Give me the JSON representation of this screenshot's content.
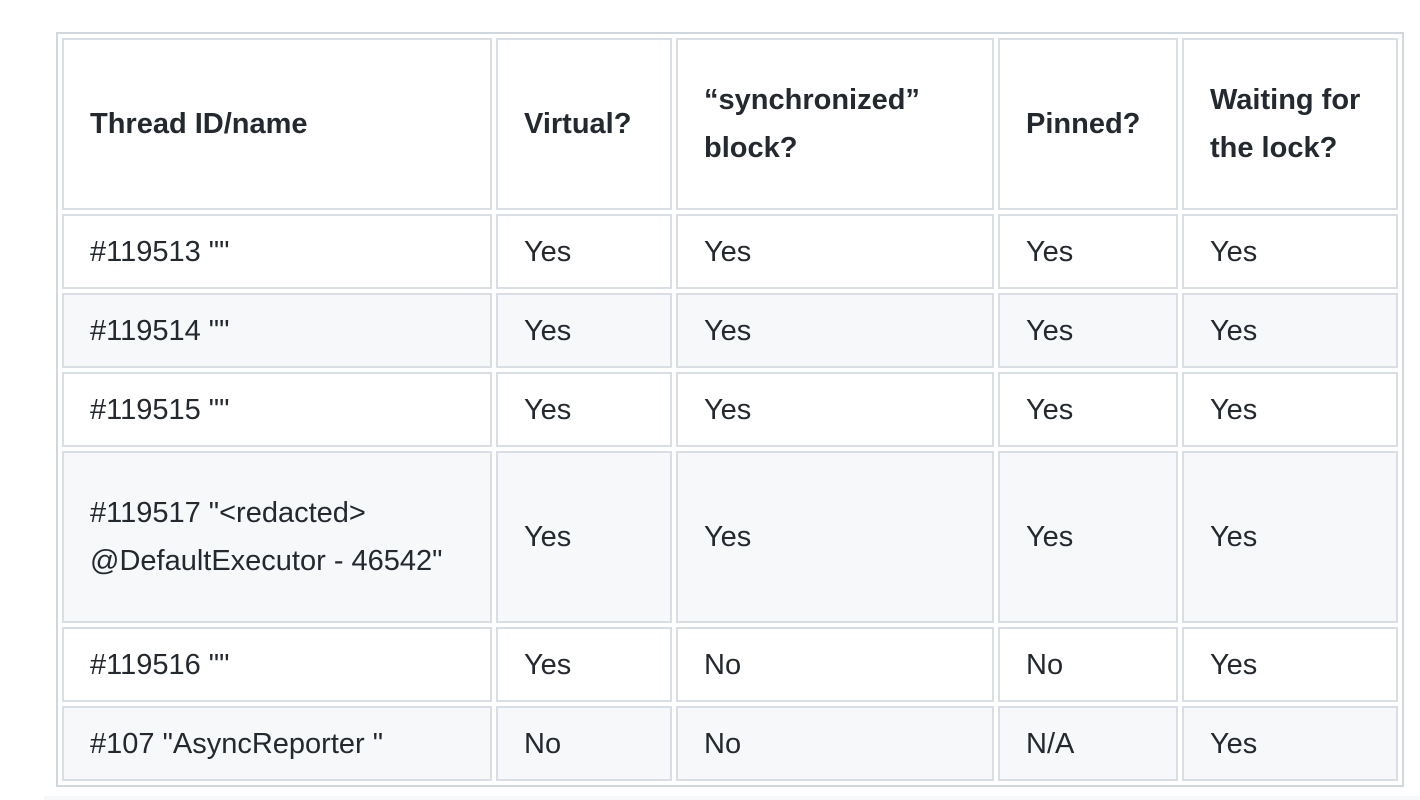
{
  "table": {
    "headers": [
      "Thread ID/name",
      "Virtual?",
      "“synchronized” block?",
      "Pinned?",
      "Waiting for the lock?"
    ],
    "rows": [
      [
        "#119513 \"\"",
        "Yes",
        "Yes",
        "Yes",
        "Yes"
      ],
      [
        "#119514 \"\"",
        "Yes",
        "Yes",
        "Yes",
        "Yes"
      ],
      [
        "#119515 \"\"",
        "Yes",
        "Yes",
        "Yes",
        "Yes"
      ],
      [
        "#119517 \"<redacted> @DefaultExecutor - 46542\"",
        "Yes",
        "Yes",
        "Yes",
        "Yes"
      ],
      [
        "#119516 \"\"",
        "Yes",
        "No",
        "No",
        "Yes"
      ],
      [
        "#107 \"AsyncReporter \"",
        "No",
        "No",
        "N/A",
        "Yes"
      ]
    ]
  },
  "colors": {
    "border": "#d0d7de",
    "alt_row": "#f6f8fa",
    "text": "#24292f"
  }
}
